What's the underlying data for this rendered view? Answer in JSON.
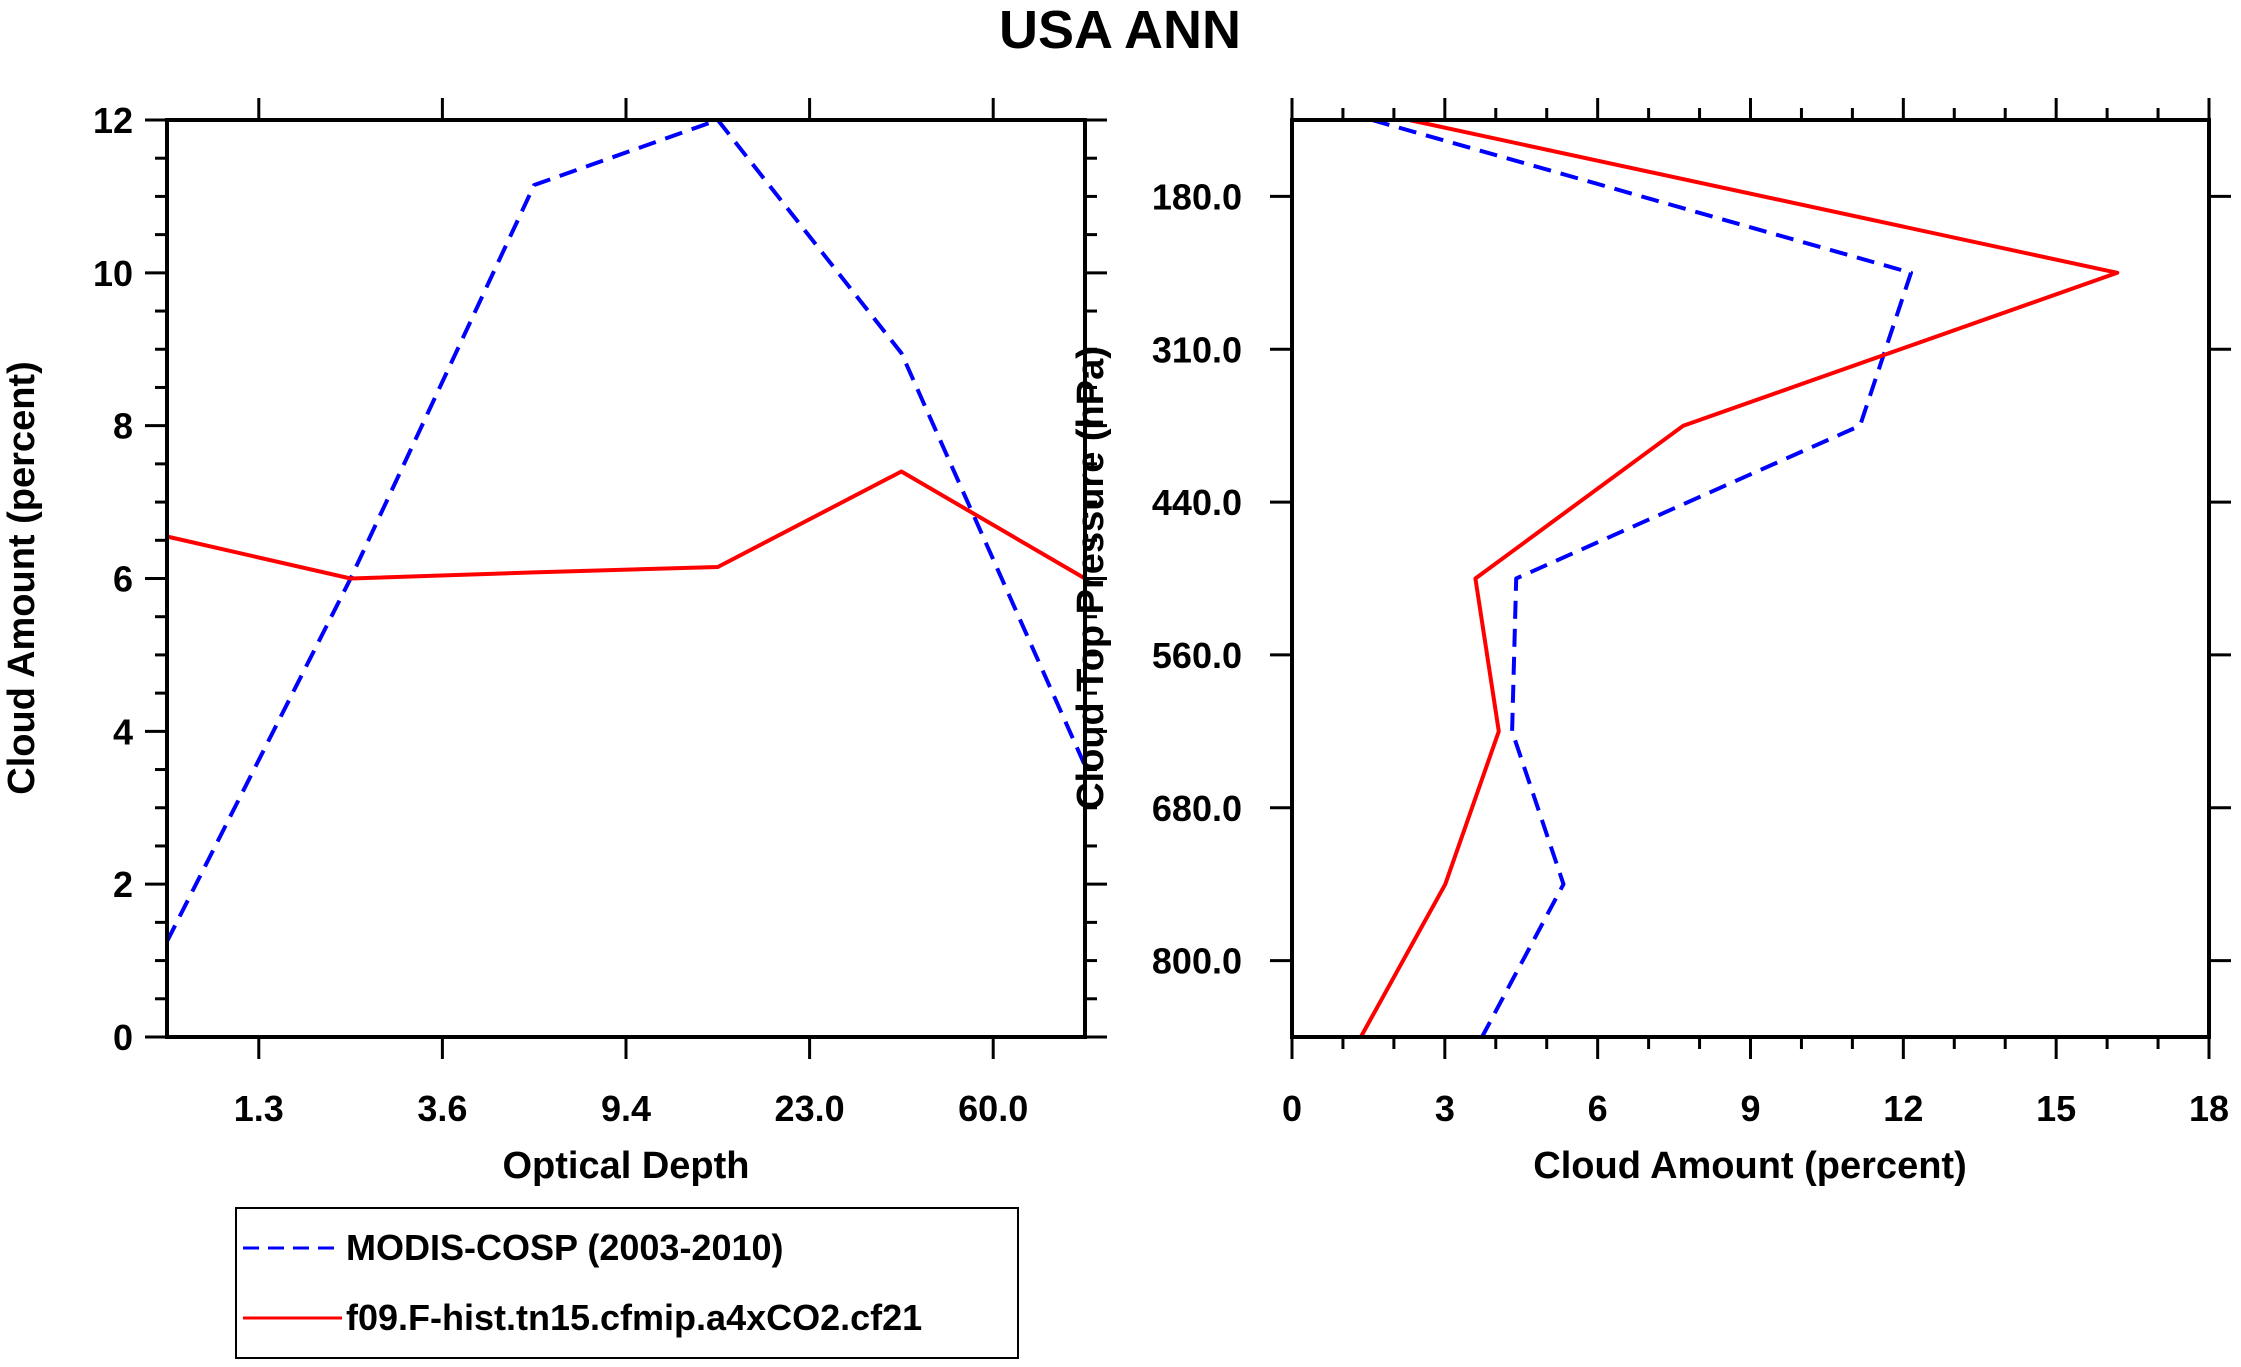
{
  "chart_data": [
    {
      "type": "line",
      "title": "USA ANN",
      "xlabel": "Optical Depth",
      "ylabel": "Cloud Amount (percent)",
      "x_tick_labels": [
        "1.3",
        "3.6",
        "9.4",
        "23.0",
        "60.0"
      ],
      "y_tick_labels": [
        "0",
        "2",
        "4",
        "6",
        "8",
        "10",
        "12"
      ],
      "ylim": [
        0,
        12
      ],
      "x_bins": 6,
      "series": [
        {
          "name": "MODIS-COSP (2003-2010)",
          "color": "#0000ff",
          "style": "dashed",
          "values": [
            1.25,
            6.0,
            11.15,
            12.0,
            8.95,
            3.55
          ]
        },
        {
          "name": "f09.F-hist.tn15.cfmip.a4xCO2.cf21",
          "color": "#ff0000",
          "style": "solid",
          "values": [
            6.55,
            6.0,
            6.08,
            6.15,
            7.4,
            6.0
          ]
        }
      ]
    },
    {
      "type": "line",
      "xlabel": "Cloud Amount (percent)",
      "ylabel": "Cloud Top Pressure (hPa)",
      "x_tick_labels": [
        "0",
        "3",
        "6",
        "9",
        "12",
        "15",
        "18"
      ],
      "y_tick_labels": [
        "180.0",
        "310.0",
        "440.0",
        "560.0",
        "680.0",
        "800.0"
      ],
      "xlim": [
        0,
        18
      ],
      "y_levels": 7,
      "series": [
        {
          "name": "MODIS-COSP (2003-2010)",
          "color": "#0000ff",
          "style": "dashed",
          "values": [
            1.57,
            12.15,
            11.15,
            4.4,
            4.32,
            5.33,
            3.73
          ]
        },
        {
          "name": "f09.F-hist.tn15.cfmip.a4xCO2.cf21",
          "color": "#ff0000",
          "style": "solid",
          "values": [
            2.3,
            16.2,
            7.68,
            3.6,
            4.06,
            3.01,
            1.35
          ]
        }
      ]
    }
  ],
  "legend": [
    {
      "label": "MODIS-COSP (2003-2010)",
      "color": "#0000ff",
      "style": "dashed"
    },
    {
      "label": "f09.F-hist.tn15.cfmip.a4xCO2.cf21",
      "color": "#ff0000",
      "style": "solid"
    }
  ]
}
